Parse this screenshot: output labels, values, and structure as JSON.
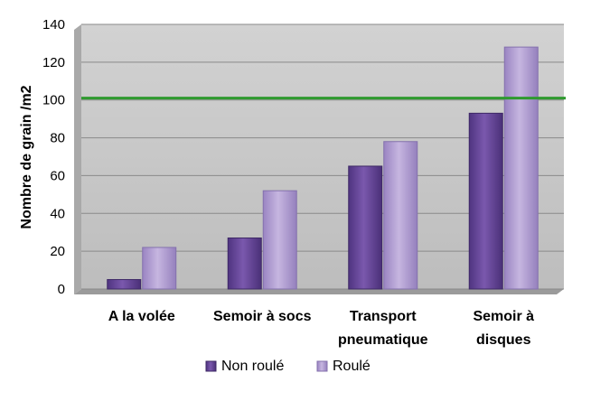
{
  "chart_data": {
    "type": "bar",
    "title": "",
    "xlabel": "",
    "ylabel": "Nombre de grain /m2",
    "ylim": [
      0,
      140
    ],
    "yticks": [
      0,
      20,
      40,
      60,
      80,
      100,
      120,
      140
    ],
    "categories": [
      [
        "A la volée"
      ],
      [
        "Semoir à socs"
      ],
      [
        "Transport",
        "pneumatique"
      ],
      [
        "Semoir à",
        "disques"
      ]
    ],
    "series": [
      {
        "name": "Non roulé",
        "values": [
          5,
          27,
          65,
          93
        ],
        "color": "#6a4a9a"
      },
      {
        "name": "Roulé",
        "values": [
          22,
          52,
          78,
          128
        ],
        "color": "#b4a0d4"
      }
    ],
    "reference_line": {
      "value": 101,
      "color": "#2e9a2e"
    },
    "grid": true,
    "legend": "bottom",
    "plot_background": "#c8c8c8"
  }
}
